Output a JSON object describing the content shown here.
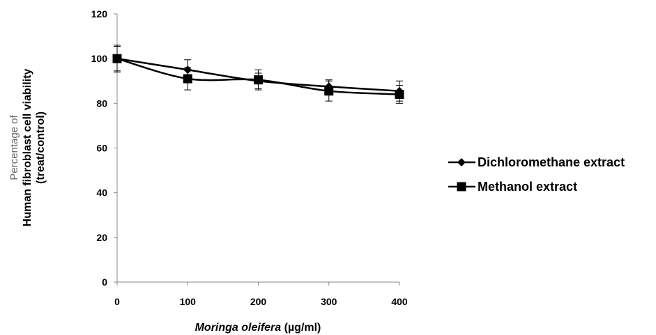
{
  "chart_data": {
    "type": "line",
    "x": [
      0,
      100,
      200,
      300,
      400
    ],
    "series": [
      {
        "name": "Dichloromethane extract",
        "marker": "diamond",
        "values": [
          100,
          95,
          90,
          87.5,
          85.5
        ],
        "errors": [
          5.5,
          4.5,
          3.5,
          3,
          4.5
        ]
      },
      {
        "name": "Methanol extract",
        "marker": "square",
        "values": [
          100,
          91,
          90.5,
          85.5,
          84
        ],
        "errors": [
          6,
          5,
          4.5,
          4.5,
          4
        ]
      }
    ],
    "xlabel_italic": "Moringa oleifera",
    "xlabel_rest": " (µg/ml)",
    "ylabel_lines": [
      "Percentage of",
      "Human fibroblast cell viability",
      "(treat/control)"
    ],
    "ylim": [
      0,
      120
    ],
    "yticks": [
      0,
      20,
      40,
      60,
      80,
      100,
      120
    ],
    "xlim": [
      0,
      400
    ],
    "xticks": [
      0,
      100,
      200,
      300,
      400
    ],
    "legend_position": "right",
    "grid": false
  }
}
